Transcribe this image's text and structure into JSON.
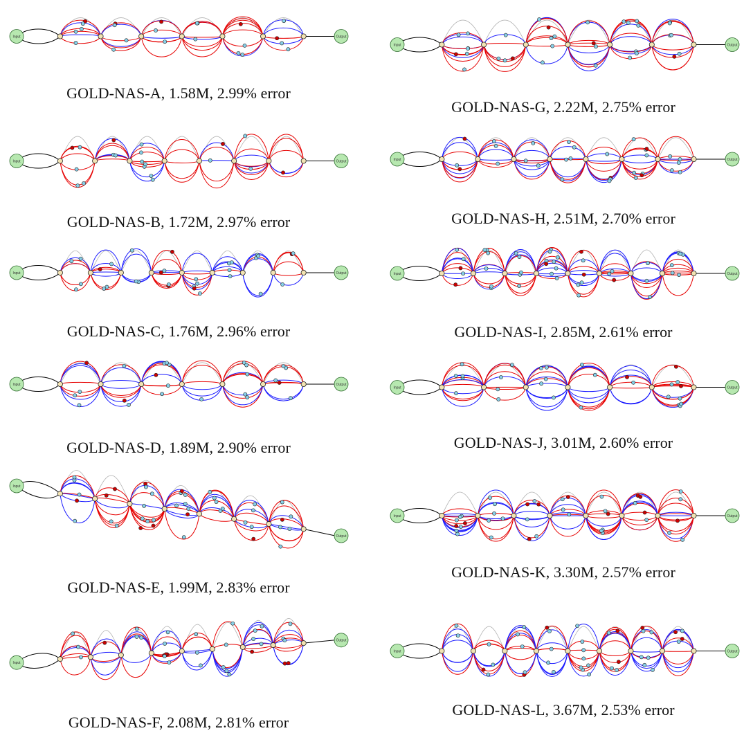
{
  "figure": {
    "colors": {
      "edge_a": "#e60000",
      "edge_b": "#1a1aff",
      "edge_skip": "#b3b3b3",
      "edge_io": "#000000",
      "node_fill": "#87cfe8",
      "node_red": "#cc0000",
      "cell_fill": "#f2e3b3",
      "io_fill": "#b7e8b0",
      "io_stroke": "#2e6b2e"
    },
    "architectures": [
      {
        "id": "A",
        "name": "GOLD-NAS-A",
        "params": "1.58M",
        "error": "2.99%",
        "caption": "GOLD-NAS-A, 1.58M, 2.99% error",
        "input_label": "Input",
        "output_label": "Output"
      },
      {
        "id": "B",
        "name": "GOLD-NAS-B",
        "params": "1.72M",
        "error": "2.97%",
        "caption": "GOLD-NAS-B, 1.72M, 2.97% error",
        "input_label": "Input",
        "output_label": "Output"
      },
      {
        "id": "C",
        "name": "GOLD-NAS-C",
        "params": "1.76M",
        "error": "2.96%",
        "caption": "GOLD-NAS-C, 1.76M, 2.96% error",
        "input_label": "Input",
        "output_label": "Output"
      },
      {
        "id": "D",
        "name": "GOLD-NAS-D",
        "params": "1.89M",
        "error": "2.90%",
        "caption": "GOLD-NAS-D, 1.89M, 2.90% error",
        "input_label": "Input",
        "output_label": "Output"
      },
      {
        "id": "E",
        "name": "GOLD-NAS-E",
        "params": "1.99M",
        "error": "2.83%",
        "caption": "GOLD-NAS-E, 1.99M, 2.83% error",
        "input_label": "Input",
        "output_label": "Output"
      },
      {
        "id": "F",
        "name": "GOLD-NAS-F",
        "params": "2.08M",
        "error": "2.81%",
        "caption": "GOLD-NAS-F, 2.08M, 2.81% error",
        "input_label": "Input",
        "output_label": "Output"
      },
      {
        "id": "G",
        "name": "GOLD-NAS-G",
        "params": "2.22M",
        "error": "2.75%",
        "caption": "GOLD-NAS-G, 2.22M, 2.75% error",
        "input_label": "Input",
        "output_label": "Output"
      },
      {
        "id": "H",
        "name": "GOLD-NAS-H",
        "params": "2.51M",
        "error": "2.70%",
        "caption": "GOLD-NAS-H, 2.51M, 2.70% error",
        "input_label": "Input",
        "output_label": "Output"
      },
      {
        "id": "I",
        "name": "GOLD-NAS-I",
        "params": "2.85M",
        "error": "2.61%",
        "caption": "GOLD-NAS-I, 2.85M, 2.61% error",
        "input_label": "Input",
        "output_label": "Output"
      },
      {
        "id": "J",
        "name": "GOLD-NAS-J",
        "params": "3.01M",
        "error": "2.60%",
        "caption": "GOLD-NAS-J, 3.01M, 2.60% error",
        "input_label": "Input",
        "output_label": "Output"
      },
      {
        "id": "K",
        "name": "GOLD-NAS-K",
        "params": "3.30M",
        "error": "2.57%",
        "caption": "GOLD-NAS-K, 3.30M, 2.57% error",
        "input_label": "Input",
        "output_label": "Output"
      },
      {
        "id": "L",
        "name": "GOLD-NAS-L",
        "params": "3.67M",
        "error": "2.53%",
        "caption": "GOLD-NAS-L, 3.67M, 2.53% error",
        "input_label": "Input",
        "output_label": "Output"
      }
    ]
  }
}
